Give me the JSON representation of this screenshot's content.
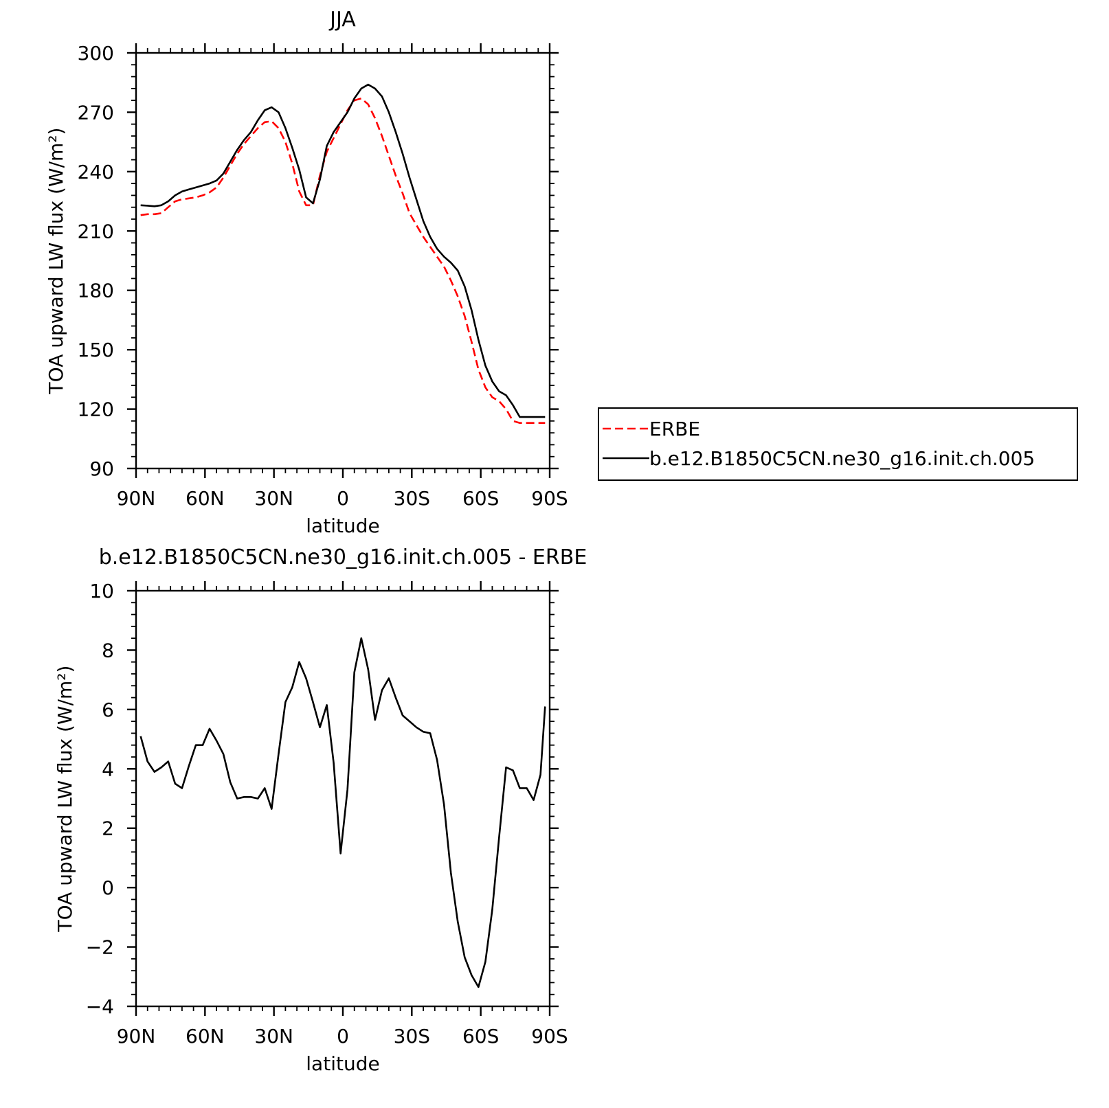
{
  "chart_data": [
    {
      "type": "line",
      "title": "JJA",
      "xlabel": "latitude",
      "ylabel": "TOA upward LW flux (W/m²)",
      "xlim": [
        90,
        -90
      ],
      "ylim": [
        90,
        300
      ],
      "xticks": [
        90,
        60,
        30,
        0,
        -30,
        -60,
        -90
      ],
      "xtick_labels": [
        "90N",
        "60N",
        "30N",
        "0",
        "30S",
        "60S",
        "90S"
      ],
      "yticks": [
        90,
        120,
        150,
        180,
        210,
        240,
        270,
        300
      ],
      "ytick_labels": [
        "90",
        "120",
        "150",
        "180",
        "210",
        "240",
        "270",
        "300"
      ],
      "legend": "right",
      "series": [
        {
          "name": "ERBE",
          "color": "#ff0000",
          "dash": "dashed",
          "x": [
            88,
            85,
            82,
            79,
            76,
            73,
            70,
            67,
            64,
            61,
            58,
            55,
            52,
            49,
            46,
            43,
            40,
            37,
            34,
            31,
            28,
            25,
            22,
            19,
            16,
            13,
            10,
            7,
            4,
            1,
            -2,
            -5,
            -8,
            -11,
            -14,
            -17,
            -20,
            -23,
            -26,
            -29,
            -32,
            -35,
            -38,
            -41,
            -44,
            -47,
            -50,
            -53,
            -56,
            -59,
            -62,
            -65,
            -68,
            -71,
            -74,
            -77,
            -80,
            -83,
            -86,
            -88
          ],
          "y": [
            218,
            218.5,
            218.5,
            219,
            222,
            225,
            226,
            226.5,
            227,
            228,
            229.5,
            232,
            237,
            243,
            249,
            254,
            258,
            262,
            265,
            265.5,
            262,
            255,
            244,
            230,
            223,
            223,
            238,
            250,
            257,
            264,
            271,
            276,
            277,
            274,
            267,
            258,
            248,
            238,
            229,
            219,
            213,
            207,
            202,
            197,
            192,
            185,
            177,
            167,
            154,
            140,
            131,
            126,
            124,
            120,
            114,
            113,
            113,
            113,
            113,
            113
          ],
          "x_drawn_to": -88
        },
        {
          "name": "b.e12.B1850C5CN.ne30_g16.init.ch.005",
          "color": "#000000",
          "dash": "solid",
          "x": [
            88,
            85,
            82,
            79,
            76,
            73,
            70,
            67,
            64,
            61,
            58,
            55,
            52,
            49,
            46,
            43,
            40,
            37,
            34,
            31,
            28,
            25,
            22,
            19,
            16,
            13,
            10,
            7,
            4,
            1,
            -2,
            -5,
            -8,
            -11,
            -14,
            -17,
            -20,
            -23,
            -26,
            -29,
            -32,
            -35,
            -38,
            -41,
            -44,
            -47,
            -50,
            -53,
            -56,
            -59,
            -62,
            -65,
            -68,
            -71,
            -74,
            -77,
            -80,
            -83,
            -86,
            -88
          ],
          "y": [
            223,
            222.8,
            222.5,
            223,
            225,
            228,
            230,
            231,
            232,
            233,
            234,
            235.5,
            239,
            245,
            251,
            256,
            260,
            266,
            271,
            272.5,
            270,
            262,
            252,
            241,
            227,
            224,
            236,
            253,
            260,
            265,
            270,
            277,
            282,
            284,
            282,
            278,
            270,
            260,
            249,
            237,
            226,
            215,
            207,
            201,
            197,
            194,
            190,
            182,
            170,
            155,
            142,
            134,
            129,
            127,
            122,
            116,
            116,
            116,
            116,
            116
          ]
        }
      ]
    },
    {
      "type": "line",
      "title": "b.e12.B1850C5CN.ne30_g16.init.ch.005 - ERBE",
      "xlabel": "latitude",
      "ylabel": "TOA upward LW flux (W/m²)",
      "xlim": [
        90,
        -90
      ],
      "ylim": [
        -4,
        10
      ],
      "xticks": [
        90,
        60,
        30,
        0,
        -30,
        -60,
        -90
      ],
      "xtick_labels": [
        "90N",
        "60N",
        "30N",
        "0",
        "30S",
        "60S",
        "90S"
      ],
      "yticks": [
        -4,
        -2,
        0,
        2,
        4,
        6,
        8,
        10
      ],
      "ytick_labels": [
        "−4",
        "−2",
        "0",
        "2",
        "4",
        "6",
        "8",
        "10"
      ],
      "series": [
        {
          "color": "#000000",
          "dash": "solid",
          "x": [
            88,
            85,
            82,
            79,
            76,
            73,
            70,
            67,
            64,
            61,
            58,
            55,
            52,
            49,
            46,
            43,
            40,
            37,
            34,
            31,
            28,
            25,
            22,
            19,
            16,
            13,
            10,
            7,
            4,
            1,
            -2,
            -5,
            -8,
            -11,
            -14,
            -17,
            -20,
            -23,
            -26,
            -29,
            -32,
            -35,
            -38,
            -41,
            -44,
            -47,
            -50,
            -53,
            -56,
            -59,
            -62,
            -65,
            -68,
            -71,
            -74,
            -77,
            -80,
            -83,
            -86,
            -88
          ],
          "y": [
            5.1,
            4.25,
            3.9,
            4.05,
            4.25,
            3.5,
            3.35,
            4.1,
            4.8,
            4.8,
            5.35,
            4.95,
            4.5,
            3.55,
            3.0,
            3.05,
            3.05,
            3.0,
            3.35,
            2.65,
            4.5,
            6.25,
            6.75,
            7.6,
            7.05,
            6.25,
            5.4,
            6.15,
            4.2,
            1.15,
            3.3,
            7.25,
            8.4,
            7.35,
            5.65,
            6.65,
            7.05,
            6.4,
            5.8,
            5.6,
            5.4,
            5.25,
            5.2,
            4.3,
            2.8,
            0.5,
            -1.15,
            -2.35,
            -2.95,
            -3.35,
            -2.5,
            -0.75,
            1.7,
            4.05,
            3.95,
            3.35,
            3.35,
            2.95,
            3.8,
            6.1
          ]
        }
      ]
    }
  ]
}
